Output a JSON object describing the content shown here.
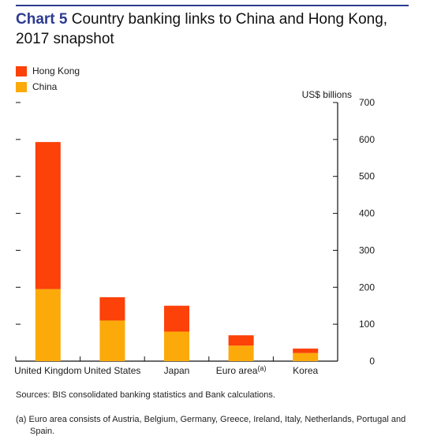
{
  "header": {
    "chart_number": "Chart 5",
    "title": "Country banking links to China and Hong Kong, 2017 snapshot"
  },
  "colors": {
    "hong_kong": "#fc4109",
    "china": "#fcaa09",
    "rule": "#2d3b8f"
  },
  "chart_data": {
    "type": "bar",
    "stacked": true,
    "title": "Country banking links to China and Hong Kong, 2017 snapshot",
    "ylabel": "US$ billions",
    "ylim": [
      0,
      700
    ],
    "yticks": [
      0,
      100,
      200,
      300,
      400,
      500,
      600,
      700
    ],
    "y_axis_position": "right",
    "categories": [
      "United Kingdom",
      "United States",
      "Japan",
      "Euro area",
      "Korea"
    ],
    "category_notes": [
      "",
      "",
      "",
      "(a)",
      ""
    ],
    "series": [
      {
        "name": "China",
        "color": "#fcaa09",
        "values": [
          195,
          110,
          80,
          42,
          22
        ]
      },
      {
        "name": "Hong Kong",
        "color": "#fc4109",
        "values": [
          398,
          63,
          70,
          28,
          12
        ]
      }
    ],
    "legend": [
      "Hong Kong",
      "China"
    ],
    "legend_position": "top-left",
    "grid": false
  },
  "footer": {
    "sources": "Sources: BIS consolidated banking statistics and Bank calculations.",
    "footnote": "(a) Euro area consists of Austria, Belgium, Germany, Greece, Ireland, Italy, Netherlands, Portugal and Spain."
  }
}
